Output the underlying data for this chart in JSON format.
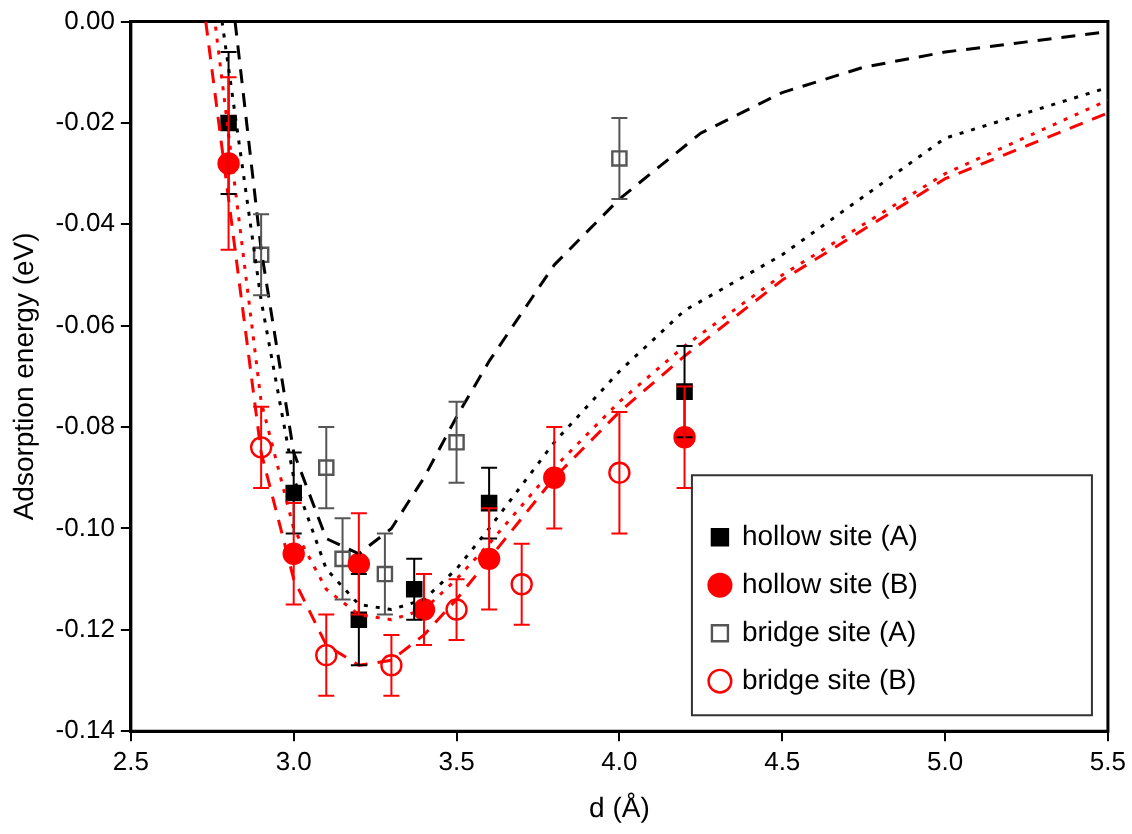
{
  "chart_data": {
    "type": "scatter",
    "xlabel": "d (Å)",
    "ylabel": "Adsorption energy (eV)",
    "xlim": [
      2.5,
      5.5
    ],
    "ylim": [
      -0.14,
      0
    ],
    "xticks": [
      {
        "value": 2.5,
        "label": "2.5"
      },
      {
        "value": 3,
        "label": "3.0"
      },
      {
        "value": 3.5,
        "label": "3.5"
      },
      {
        "value": 4,
        "label": "4.0"
      },
      {
        "value": 4.5,
        "label": "4.5"
      },
      {
        "value": 5,
        "label": "5.0"
      },
      {
        "value": 5.5,
        "label": "5.5"
      }
    ],
    "yticks": [
      {
        "value": -0.14,
        "label": "-0.14"
      },
      {
        "value": -0.12,
        "label": "-0.12"
      },
      {
        "value": -0.1,
        "label": "-0.10"
      },
      {
        "value": -0.08,
        "label": "-0.08"
      },
      {
        "value": -0.06,
        "label": "-0.06"
      },
      {
        "value": -0.04,
        "label": "-0.04"
      },
      {
        "value": -0.02,
        "label": "-0.02"
      },
      {
        "value": 0,
        "label": "0.00"
      }
    ],
    "grid": false,
    "legend": "bottom right",
    "series": [
      {
        "type": "line",
        "color": "#000000",
        "line_style": "dotted",
        "marker": "none",
        "x": [
          2.78,
          2.9,
          3.0,
          3.1,
          3.2,
          3.3,
          3.4,
          3.5,
          3.6,
          3.8,
          4.0,
          4.2,
          4.5,
          5.0,
          5.5
        ],
        "values": [
          0,
          -0.055,
          -0.09,
          -0.108,
          -0.115,
          -0.116,
          -0.114,
          -0.108,
          -0.1,
          -0.083,
          -0.069,
          -0.057,
          -0.046,
          -0.023,
          -0.013
        ]
      },
      {
        "type": "line",
        "color": "#ff0000",
        "line_style": "dotted",
        "marker": "none",
        "x": [
          2.76,
          2.9,
          3.0,
          3.1,
          3.2,
          3.3,
          3.4,
          3.5,
          3.6,
          3.8,
          4.0,
          4.2,
          4.5,
          5.0,
          5.5
        ],
        "values": [
          -0.001,
          -0.075,
          -0.1,
          -0.112,
          -0.117,
          -0.118,
          -0.116,
          -0.11,
          -0.103,
          -0.088,
          -0.075,
          -0.064,
          -0.05,
          -0.03,
          -0.0155
        ]
      },
      {
        "type": "line",
        "color": "#000000",
        "line_style": "dashed",
        "marker": "none",
        "x": [
          2.82,
          2.9,
          3.0,
          3.1,
          3.2,
          3.3,
          3.4,
          3.5,
          3.6,
          3.8,
          4.0,
          4.25,
          4.5,
          4.75,
          5.0,
          5.25,
          5.5
        ],
        "values": [
          0,
          -0.045,
          -0.085,
          -0.102,
          -0.105,
          -0.1,
          -0.09,
          -0.078,
          -0.067,
          -0.048,
          -0.035,
          -0.022,
          -0.014,
          -0.009,
          -0.006,
          -0.004,
          -0.002
        ]
      },
      {
        "type": "line",
        "color": "#ff0000",
        "line_style": "dashed",
        "marker": "none",
        "x": [
          2.73,
          2.9,
          3.0,
          3.1,
          3.2,
          3.3,
          3.4,
          3.5,
          3.6,
          3.8,
          4.0,
          4.2,
          4.5,
          5.0,
          5.5
        ],
        "values": [
          0,
          -0.085,
          -0.11,
          -0.123,
          -0.127,
          -0.126,
          -0.121,
          -0.114,
          -0.106,
          -0.09,
          -0.077,
          -0.066,
          -0.051,
          -0.031,
          -0.018
        ]
      },
      {
        "name": "hollow site (A)",
        "color": "#000000",
        "marker": "square",
        "x": [
          2.8,
          3.0,
          3.2,
          3.37,
          3.6,
          4.2
        ],
        "values": [
          -0.02,
          -0.093,
          -0.118,
          -0.112,
          -0.095,
          -0.073
        ],
        "errors": [
          0.014,
          0.008,
          0.009,
          0.006,
          0.007,
          0.009
        ]
      },
      {
        "name": "hollow site (B)",
        "color": "#ff0000",
        "marker": "circle",
        "x": [
          2.8,
          3.0,
          3.2,
          3.4,
          3.6,
          3.8,
          4.2
        ],
        "values": [
          -0.028,
          -0.105,
          -0.107,
          -0.116,
          -0.106,
          -0.09,
          -0.082
        ],
        "errors": [
          0.017,
          0.01,
          0.01,
          0.007,
          0.01,
          0.01,
          0.01
        ]
      },
      {
        "name": "bridge site (A)",
        "color": "#555555",
        "marker": "square",
        "x": [
          2.9,
          3.1,
          3.15,
          3.28,
          3.5,
          4.0
        ],
        "values": [
          -0.046,
          -0.088,
          -0.106,
          -0.109,
          -0.083,
          -0.027
        ],
        "errors": [
          0.008,
          0.008,
          0.008,
          0.008,
          0.008,
          0.008
        ]
      },
      {
        "name": "bridge site (B)",
        "color": "#ff0000",
        "marker": "circle",
        "x": [
          2.9,
          3.1,
          3.3,
          3.5,
          3.7,
          4.0
        ],
        "values": [
          -0.084,
          -0.125,
          -0.127,
          -0.116,
          -0.111,
          -0.089
        ],
        "errors": [
          0.008,
          0.008,
          0.006,
          0.006,
          0.008,
          0.012
        ]
      }
    ]
  }
}
